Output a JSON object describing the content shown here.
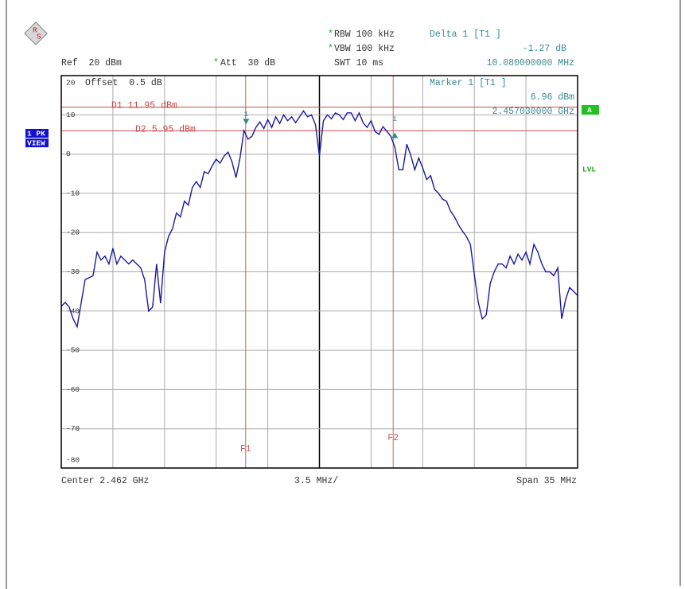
{
  "logo": [
    "R",
    "S"
  ],
  "header": {
    "rbw_flag": "*",
    "rbw": "RBW 100 kHz",
    "vbw_flag": "*",
    "vbw": "VBW 100 kHz",
    "swt": "SWT 10 ms",
    "ref": "Ref  20 dBm",
    "att_flag": "*",
    "att": "Att  30 dB",
    "delta_title": "Delta 1 [T1 ]",
    "delta_level": "-1.27 dB",
    "delta_freq": "10.080000000 MHz"
  },
  "side": {
    "trace_mode": [
      "1 PK",
      "VIEW"
    ],
    "trace_badge": "A",
    "level": "LVL"
  },
  "chart_data": {
    "type": "line",
    "color": "#1a1aa0",
    "grid": true,
    "offset": "Offset  0.5 dB",
    "marker_info": [
      "Marker 1 [T1 ]",
      "6.96 dBm",
      "2.457030000 GHz"
    ],
    "ylim": [
      -80,
      20
    ],
    "yticks": [
      20,
      10,
      0,
      -10,
      -20,
      -30,
      -40,
      -50,
      -60,
      -70,
      -80
    ],
    "xlim": [
      2.4445,
      2.4795
    ],
    "x_labels": {
      "center": "Center 2.462 GHz",
      "per_div": "3.5 MHz/",
      "span": "Span 35 MHz"
    },
    "reference_lines": [
      {
        "label": "D1 11.95 dBm",
        "value": 11.95,
        "color": "#c84848"
      },
      {
        "label": "D2 5.95 dBm",
        "value": 5.95,
        "color": "#c84848"
      }
    ],
    "frequency_lines": [
      {
        "label": "F1",
        "value": 2.457,
        "color": "#d06060"
      },
      {
        "label": "F2",
        "value": 2.467,
        "color": "#d06060"
      }
    ],
    "markers": [
      {
        "name": "1",
        "x": 2.45703,
        "y": 6.96,
        "color": "#2e8b8b"
      },
      {
        "name": "1",
        "x": 2.46711,
        "y": 5.69,
        "color": "#2e8b8b"
      }
    ],
    "values": [
      -38.8,
      -37.8,
      -39,
      -42,
      -44,
      -38,
      -32,
      -31.5,
      -31,
      -25,
      -27,
      -26,
      -28,
      -24,
      -28,
      -26,
      -27,
      -28,
      -27,
      -28,
      -29,
      -32,
      -40,
      -39,
      -28,
      -38,
      -25,
      -21,
      -19,
      -15,
      -16,
      -12,
      -13,
      -8.5,
      -7,
      -8.5,
      -4.5,
      -5,
      -3,
      -1.3,
      -2.3,
      -0.5,
      0.5,
      -2,
      -6,
      -1,
      6,
      3.8,
      4.5,
      6.8,
      8.2,
      6.5,
      8.8,
      6.8,
      9.5,
      7.8,
      10,
      8.5,
      9.5,
      8,
      9.5,
      11,
      9.5,
      10,
      7.5,
      -0.5,
      8.5,
      10,
      9,
      10.5,
      10,
      8.8,
      10.5,
      10.5,
      8.5,
      10.5,
      8,
      6.8,
      8.5,
      5.8,
      5,
      7,
      5.8,
      4.5,
      1.7,
      -4,
      -4,
      2.5,
      -0.3,
      -4,
      -1,
      -3.5,
      -6.5,
      -5.5,
      -9,
      -10,
      -11.5,
      -12,
      -14.5,
      -16,
      -18,
      -19.6,
      -21,
      -23,
      -30.7,
      -37.8,
      -42,
      -41,
      -33,
      -30,
      -28,
      -28,
      -29,
      -26,
      -28,
      -25.5,
      -27,
      -25,
      -28,
      -23,
      -25,
      -28,
      -30,
      -30,
      -31,
      -29,
      -42,
      -37,
      -34,
      -35,
      -36
    ]
  }
}
